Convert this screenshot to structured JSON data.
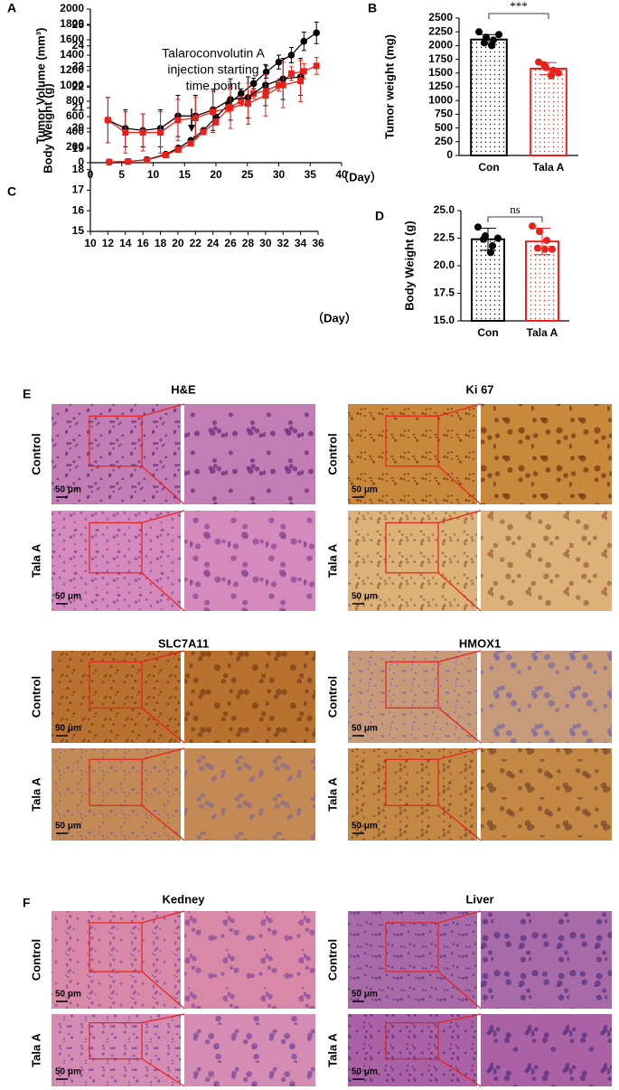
{
  "chart_data": [
    {
      "type": "line",
      "ylabel": "Tumor Volume (mm³)",
      "xlabel": "（Day）",
      "annotation": [
        "Talaroconvolutin A",
        "injection starting",
        "time point"
      ],
      "x": [
        3,
        6,
        9,
        12,
        14,
        16,
        18,
        20,
        22,
        24,
        26,
        28,
        30,
        32,
        34,
        36
      ],
      "series": [
        {
          "color": "#000000",
          "marker": "circle",
          "values": [
            10,
            15,
            40,
            110,
            190,
            290,
            420,
            590,
            760,
            900,
            1030,
            1180,
            1310,
            1400,
            1580,
            1690
          ],
          "errors": [
            5,
            5,
            10,
            15,
            20,
            25,
            30,
            40,
            50,
            60,
            70,
            80,
            90,
            100,
            120,
            140
          ]
        },
        {
          "color": "#e8211d",
          "marker": "square",
          "values": [
            10,
            15,
            35,
            100,
            170,
            250,
            400,
            530,
            710,
            800,
            900,
            940,
            1010,
            1160,
            1190,
            1260
          ],
          "errors": [
            5,
            5,
            10,
            15,
            20,
            25,
            30,
            40,
            50,
            60,
            65,
            70,
            80,
            90,
            100,
            110
          ]
        }
      ],
      "xlim": [
        0,
        40
      ],
      "xticks": [
        0,
        5,
        10,
        15,
        20,
        25,
        30,
        35,
        40
      ],
      "ylim": [
        0,
        2000
      ],
      "yticks": [
        0,
        200,
        400,
        600,
        800,
        1000,
        1200,
        1400,
        1600,
        1800,
        2000
      ]
    },
    {
      "type": "bar",
      "ylabel": "Tumor weight (mg)",
      "categories": [
        "Con",
        "Tala A"
      ],
      "values": [
        2110,
        1580
      ],
      "errors": [
        90,
        110
      ],
      "colors": [
        "#000000",
        "#e8211d"
      ],
      "points": [
        [
          2250,
          2150,
          2100,
          2050,
          2000,
          2200
        ],
        [
          1700,
          1600,
          1550,
          1650,
          1450,
          1500
        ]
      ],
      "significance": "***",
      "ylim": [
        0,
        2500
      ],
      "yticks": [
        0,
        250,
        500,
        750,
        1000,
        1250,
        1500,
        1750,
        2000,
        2250,
        2500
      ]
    },
    {
      "type": "line",
      "ylabel": "Body Weight (g)",
      "xlabel": "（Day）",
      "x": [
        12,
        14,
        16,
        18,
        20,
        22,
        24,
        26,
        28,
        30,
        32,
        34
      ],
      "series": [
        {
          "color": "#000000",
          "marker": "circle",
          "values": [
            20.4,
            20.0,
            19.9,
            20.0,
            20.6,
            20.6,
            20.9,
            21.4,
            21.5,
            22.1,
            22.4,
            22.5
          ],
          "errors": [
            1.1,
            0.9,
            0.8,
            0.9,
            1.0,
            1.0,
            1.0,
            1.0,
            1.0,
            1.0,
            1.0,
            0.9
          ]
        },
        {
          "color": "#e8211d",
          "marker": "square",
          "values": [
            20.4,
            19.8,
            19.8,
            19.8,
            20.4,
            20.5,
            20.8,
            21.0,
            21.2,
            21.6,
            22.1,
            22.3
          ],
          "errors": [
            1.1,
            1.0,
            0.9,
            1.0,
            1.0,
            1.0,
            1.0,
            1.0,
            1.0,
            1.0,
            1.1,
            1.0
          ]
        }
      ],
      "xlim": [
        10,
        36
      ],
      "xticks": [
        10,
        12,
        14,
        16,
        18,
        20,
        22,
        24,
        26,
        28,
        30,
        32,
        34,
        36
      ],
      "ylim": [
        15,
        25
      ],
      "yticks": [
        15,
        16,
        17,
        18,
        19,
        20,
        21,
        22,
        23,
        24,
        25
      ]
    },
    {
      "type": "bar",
      "ylabel": "Body Weight (g)",
      "categories": [
        "Con",
        "Tala A"
      ],
      "values": [
        22.4,
        22.2
      ],
      "errors": [
        1.0,
        1.2
      ],
      "colors": [
        "#000000",
        "#e8211d"
      ],
      "points": [
        [
          23.5,
          22.7,
          21.8,
          22.4,
          21.2,
          22.5
        ],
        [
          23.6,
          23.1,
          22.3,
          21.6,
          21.5,
          21.5
        ]
      ],
      "significance": "ns",
      "ylim": [
        15,
        25
      ],
      "yticks": [
        {
          "value": 15,
          "label": "15.0"
        },
        17.5,
        {
          "value": 20,
          "label": "20.0"
        },
        22.5,
        {
          "value": 25,
          "label": "25.0"
        }
      ]
    }
  ],
  "panels": [
    "A",
    "B",
    "C",
    "D",
    "E",
    "F"
  ],
  "histology": [
    {
      "title": "H&E",
      "rows": [
        "Control",
        "Tala A"
      ],
      "scale_bars": [
        "50 μm",
        "50 μm"
      ]
    },
    {
      "title": "Ki 67",
      "rows": [
        "Control",
        "Tala A"
      ],
      "scale_bars": [
        "50 μm",
        "50 μm"
      ]
    },
    {
      "title": "SLC7A11",
      "rows": [
        "Control",
        "Tala A"
      ],
      "scale_bars": [
        "50 μm",
        "50 μm"
      ]
    },
    {
      "title": "HMOX1",
      "rows": [
        "Control",
        "Tala A"
      ],
      "scale_bars": [
        "50 μm",
        "50 μm"
      ]
    },
    {
      "title": "Kedney",
      "rows": [
        "Control",
        "Tala A"
      ],
      "scale_bars": [
        "50 μm",
        "50 μm"
      ]
    },
    {
      "title": "Liver",
      "rows": [
        "Control",
        "Tala A"
      ],
      "scale_bars": [
        "50 μm",
        "50 μm"
      ]
    }
  ]
}
